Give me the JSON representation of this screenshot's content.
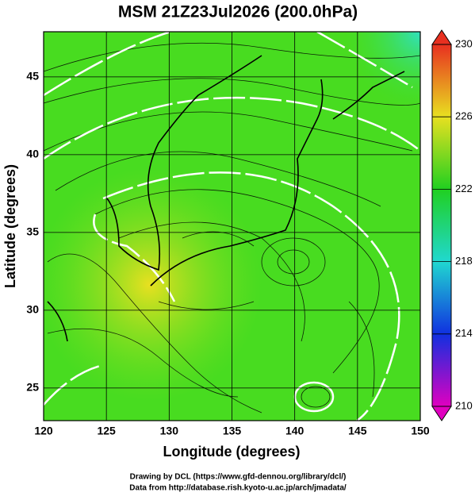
{
  "title": "MSM 21Z23Jul2026 (200.0hPa)",
  "x_axis": {
    "label": "Longitude (degrees)",
    "range": [
      120,
      150
    ],
    "ticks": [
      120,
      125,
      130,
      135,
      140,
      145,
      150
    ]
  },
  "y_axis": {
    "label": "Latitude  (degrees)",
    "range": [
      22.9,
      47.9
    ],
    "ticks": [
      25,
      30,
      35,
      40,
      45
    ]
  },
  "colorbar": {
    "range": [
      210,
      230
    ],
    "ticks": [
      210,
      214,
      218,
      222,
      226,
      230
    ],
    "colors": [
      "#e000c0",
      "#1030e0",
      "#20d8d0",
      "#20d020",
      "#e8e020",
      "#e83020"
    ]
  },
  "footer": [
    "Drawing by DCL (https://www.gfd-dennou.org/library/dcl/)",
    "Data from http://database.rish.kyoto-u.ac.jp/arch/jmadata/"
  ]
}
